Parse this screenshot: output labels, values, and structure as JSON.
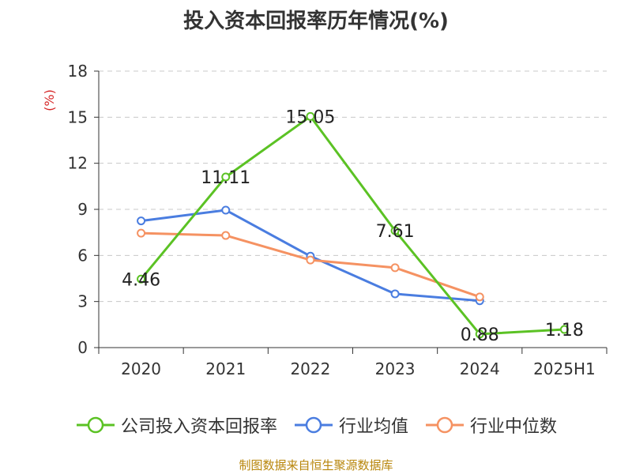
{
  "chart_data": {
    "type": "line",
    "title": "投入资本回报率历年情况(%)",
    "ylabel": "(%)",
    "categories": [
      "2020",
      "2021",
      "2022",
      "2023",
      "2024",
      "2025H1"
    ],
    "ylim": [
      0,
      18
    ],
    "yticks": [
      0,
      3,
      6,
      9,
      12,
      15,
      18
    ],
    "grid": true,
    "legend_position": "bottom",
    "series": [
      {
        "name": "公司投入资本回报率",
        "color": "#5bc224",
        "values": [
          4.46,
          11.11,
          15.05,
          7.61,
          0.88,
          1.18
        ],
        "labels": [
          "4.46",
          "11.11",
          "15.05",
          "7.61",
          "0.88",
          "1.18"
        ]
      },
      {
        "name": "行业均值",
        "color": "#4a7de0",
        "values": [
          8.25,
          8.95,
          5.95,
          3.5,
          3.05,
          null
        ]
      },
      {
        "name": "行业中位数",
        "color": "#f59262",
        "values": [
          7.45,
          7.3,
          5.7,
          5.2,
          3.3,
          null
        ]
      }
    ]
  },
  "source_text": "制图数据来自恒生聚源数据库"
}
